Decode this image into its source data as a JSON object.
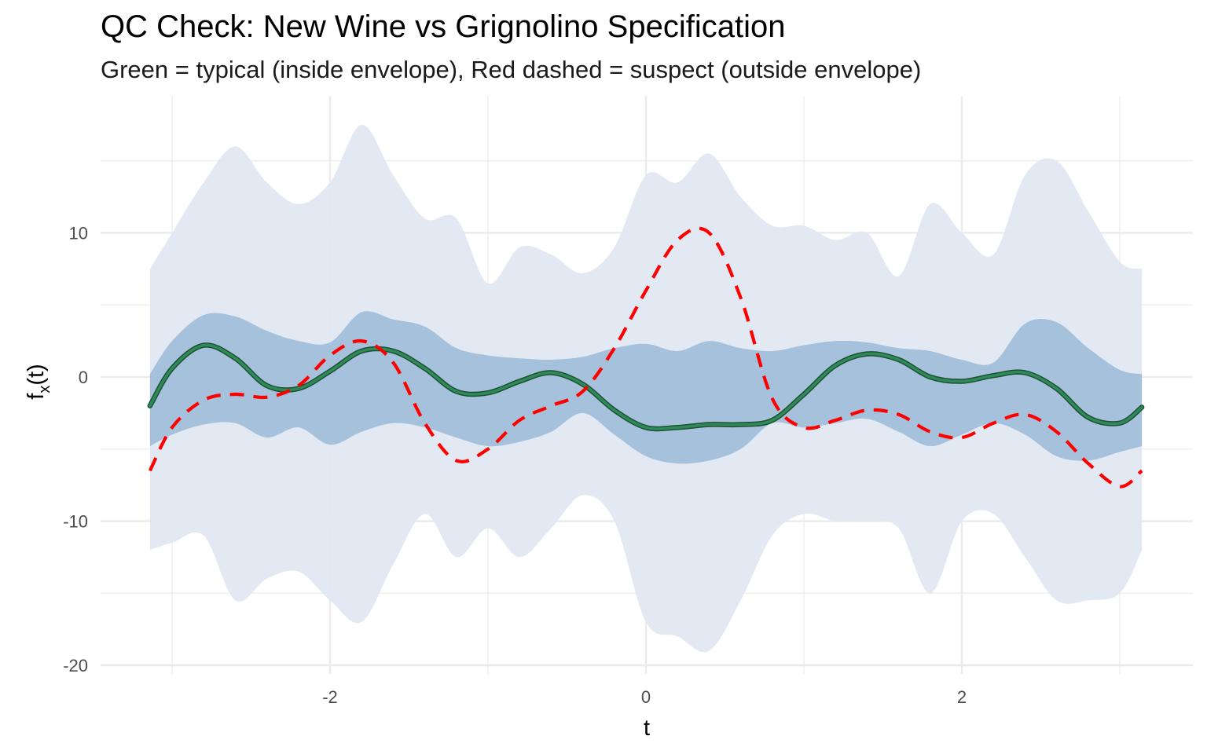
{
  "title": "QC Check: New Wine vs Grignolino Specification",
  "subtitle": "Green = typical (inside envelope), Red dashed = suspect (outside envelope)",
  "chart_data": {
    "type": "line",
    "xlabel": "t",
    "ylabel_main": "f",
    "ylabel_sub": "x",
    "ylabel_tail": "(t)",
    "xlim": [
      -3.14,
      3.14
    ],
    "ylim": [
      -20,
      18
    ],
    "x_ticks": [
      -2,
      0,
      2
    ],
    "x_tick_labels": [
      "-2",
      "0",
      "2"
    ],
    "y_ticks": [
      -20,
      -10,
      0,
      10
    ],
    "y_tick_labels": [
      "-20",
      "-10",
      "0",
      "10"
    ],
    "grid": true,
    "colors": {
      "outer_band": "#e0e7f2",
      "inner_band": "#a2bfda",
      "typical": "#2e8b57",
      "typical_edge": "#1f4f35",
      "suspect": "#ff0000",
      "grid": "#ebebeb"
    },
    "x": [
      -3.14,
      -3.0,
      -2.8,
      -2.6,
      -2.4,
      -2.2,
      -2.0,
      -1.8,
      -1.6,
      -1.4,
      -1.2,
      -1.0,
      -0.8,
      -0.6,
      -0.4,
      -0.2,
      0.0,
      0.2,
      0.4,
      0.6,
      0.8,
      1.0,
      1.2,
      1.4,
      1.6,
      1.8,
      2.0,
      2.2,
      2.4,
      2.6,
      2.8,
      3.0,
      3.14
    ],
    "outer_band": {
      "upper": [
        7.5,
        10.0,
        13.5,
        16.0,
        13.5,
        12.0,
        13.5,
        17.5,
        14.0,
        11.0,
        11.0,
        6.5,
        9.0,
        8.5,
        7.2,
        9.0,
        14.0,
        13.5,
        15.5,
        12.5,
        10.5,
        10.5,
        9.5,
        10.0,
        7.0,
        12.0,
        10.0,
        8.5,
        14.0,
        15.0,
        11.5,
        8.0,
        7.5
      ],
      "lower": [
        -12.0,
        -11.5,
        -11.0,
        -15.5,
        -14.0,
        -13.5,
        -15.5,
        -17.0,
        -13.0,
        -9.5,
        -12.5,
        -10.5,
        -12.5,
        -10.5,
        -8.2,
        -10.0,
        -17.0,
        -18.0,
        -19.0,
        -15.5,
        -11.0,
        -9.5,
        -10.0,
        -10.0,
        -10.5,
        -15.0,
        -10.0,
        -9.5,
        -12.5,
        -15.5,
        -15.5,
        -15.0,
        -12.0
      ]
    },
    "inner_band": {
      "upper": [
        0.2,
        2.5,
        4.3,
        4.2,
        3.2,
        2.5,
        2.4,
        4.5,
        4.0,
        3.5,
        2.0,
        1.5,
        1.3,
        1.2,
        1.4,
        2.0,
        2.3,
        1.8,
        2.5,
        2.0,
        1.8,
        2.2,
        2.5,
        2.4,
        2.0,
        1.8,
        1.2,
        1.0,
        3.7,
        3.8,
        2.0,
        0.5,
        0.2
      ],
      "lower": [
        -4.8,
        -4.0,
        -3.3,
        -3.2,
        -4.2,
        -3.5,
        -4.7,
        -3.8,
        -3.2,
        -3.5,
        -4.2,
        -4.8,
        -4.5,
        -3.8,
        -2.5,
        -4.0,
        -5.5,
        -6.0,
        -5.8,
        -5.0,
        -3.2,
        -3.5,
        -3.2,
        -2.9,
        -3.8,
        -4.8,
        -4.0,
        -3.2,
        -4.0,
        -5.5,
        -5.8,
        -5.2,
        -4.8
      ]
    },
    "series": [
      {
        "values": [
          -2.0,
          0.6,
          2.2,
          1.3,
          -0.6,
          -0.8,
          0.4,
          1.8,
          1.8,
          0.6,
          -1.0,
          -1.1,
          -0.3,
          0.3,
          -0.5,
          -2.3,
          -3.5,
          -3.5,
          -3.3,
          -3.3,
          -3.0,
          -1.2,
          0.8,
          1.6,
          1.2,
          0.0,
          -0.3,
          0.1,
          0.3,
          -0.8,
          -2.8,
          -3.2,
          -2.1
        ]
      },
      {
        "values": [
          -6.5,
          -3.5,
          -1.6,
          -1.2,
          -1.4,
          -0.6,
          1.5,
          2.5,
          1.0,
          -3.2,
          -5.8,
          -5.0,
          -3.0,
          -2.0,
          -1.0,
          2.0,
          6.0,
          9.5,
          10.0,
          5.5,
          -1.5,
          -3.5,
          -3.0,
          -2.3,
          -2.6,
          -3.8,
          -4.2,
          -3.2,
          -2.6,
          -3.8,
          -6.0,
          -7.6,
          -6.5
        ]
      }
    ]
  }
}
